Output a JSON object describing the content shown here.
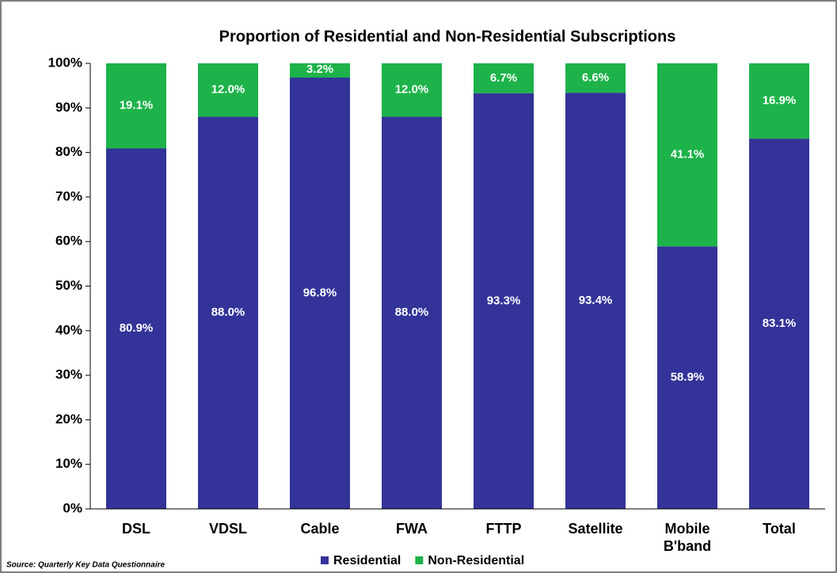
{
  "chart_data": {
    "type": "stacked_bar",
    "title": "Proportion of Residential and Non-Residential Subscriptions",
    "source": "Source: Quarterly Key Data Questionnaire",
    "categories": [
      "DSL",
      "VDSL",
      "Cable",
      "FWA",
      "FTTP",
      "Satellite",
      "Mobile B'band",
      "Total"
    ],
    "series": [
      {
        "name": "Residential",
        "color": "#333399",
        "values": [
          80.9,
          88.0,
          96.8,
          88.0,
          93.3,
          93.4,
          58.9,
          83.1
        ],
        "value_labels": [
          "80.9%",
          "88.0%",
          "96.8%",
          "88.0%",
          "93.3%",
          "93.4%",
          "58.9%",
          "83.1%"
        ]
      },
      {
        "name": "Non-Residential",
        "color": "#1db34a",
        "values": [
          19.1,
          12.0,
          3.2,
          12.0,
          6.7,
          6.6,
          41.1,
          16.9
        ],
        "value_labels": [
          "19.1%",
          "12.0%",
          "3.2%",
          "12.0%",
          "6.7%",
          "6.6%",
          "41.1%",
          "16.9%"
        ]
      }
    ],
    "ylim": [
      0,
      100
    ],
    "yticks": [
      {
        "value": 0,
        "label": "0%"
      },
      {
        "value": 10,
        "label": "10%"
      },
      {
        "value": 20,
        "label": "20%"
      },
      {
        "value": 30,
        "label": "30%"
      },
      {
        "value": 40,
        "label": "40%"
      },
      {
        "value": 50,
        "label": "50%"
      },
      {
        "value": 60,
        "label": "60%"
      },
      {
        "value": 70,
        "label": "70%"
      },
      {
        "value": 80,
        "label": "80%"
      },
      {
        "value": 90,
        "label": "90%"
      },
      {
        "value": 100,
        "label": "100%"
      }
    ],
    "legend": "bottom"
  }
}
